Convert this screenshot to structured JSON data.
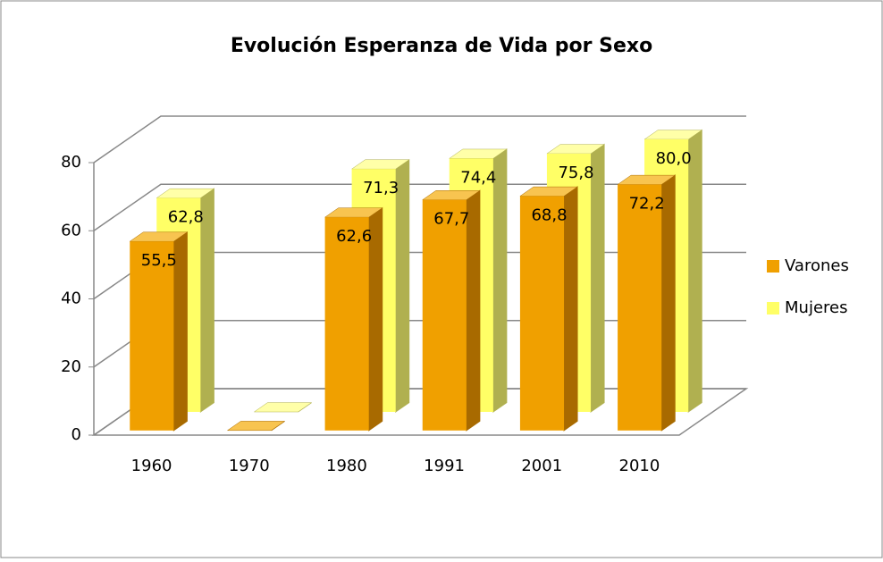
{
  "chart_data": {
    "type": "bar3d",
    "title": "Evolución Esperanza de Vida por Sexo",
    "categories": [
      "1960",
      "1970",
      "1980",
      "1991",
      "2001",
      "2010"
    ],
    "series": [
      {
        "name": "Varones",
        "color": "#f0a000",
        "values": [
          55.5,
          0,
          62.6,
          67.7,
          68.8,
          72.2
        ],
        "value_labels": [
          "55,5",
          null,
          "62,6",
          "67,7",
          "68,8",
          "72,2"
        ]
      },
      {
        "name": "Mujeres",
        "color": "#ffff66",
        "values": [
          62.8,
          0,
          71.3,
          74.4,
          75.8,
          80.0
        ],
        "value_labels": [
          "62,8",
          null,
          "71,3",
          "74,4",
          "75,8",
          "80,0"
        ]
      }
    ],
    "ylim": [
      0,
      80
    ],
    "yticks": [
      0,
      20,
      40,
      60,
      80
    ],
    "grid": true,
    "legend": "right"
  }
}
